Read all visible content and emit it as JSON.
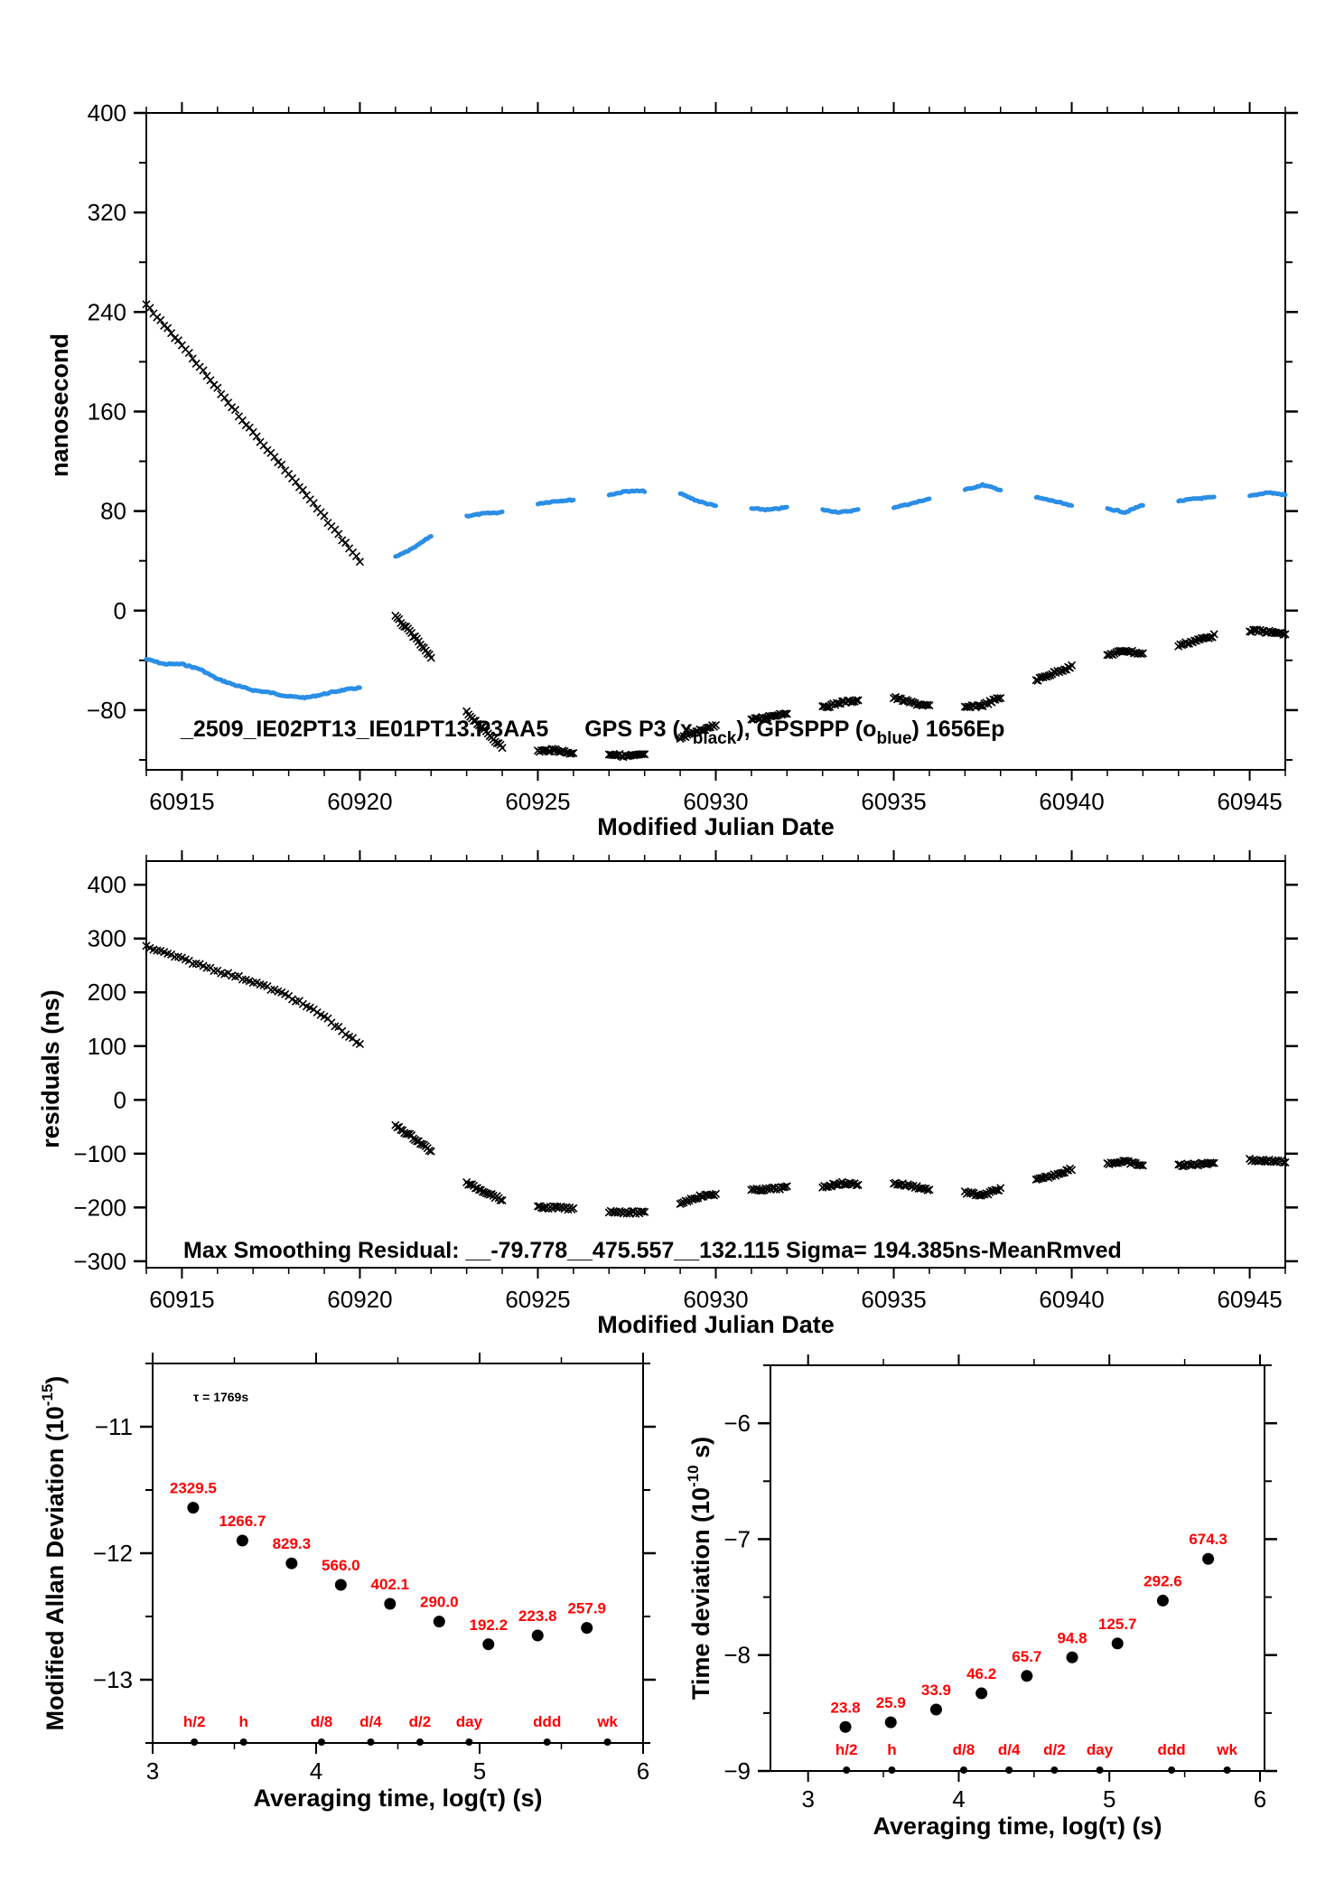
{
  "chart_data": [
    {
      "id": "time-series",
      "type": "scatter",
      "xlabel": "Modified Julian Date",
      "ylabel": "nanosecond",
      "xlim": [
        60914,
        60946
      ],
      "ylim": [
        -128,
        400
      ],
      "xticks": [
        60915,
        60920,
        60925,
        60930,
        60935,
        60940,
        60945
      ],
      "xtick_labels": [
        "60915",
        "60920",
        "60925",
        "60930",
        "60935",
        "60940",
        "60945"
      ],
      "yticks": [
        400,
        320,
        240,
        160,
        80,
        0,
        -80
      ],
      "ytick_labels": [
        "400",
        "320",
        "240",
        "160",
        "80",
        "0",
        "−80"
      ],
      "legend": {
        "prefix": "_2509_IE02PT13_IE01PT13.P3AA5",
        "series1": "GPS P3 (x",
        "series1_sub": "black",
        "series2": "),  GPSPPP (o",
        "series2_sub": "blue",
        "suffix": ")  1656Ep",
        "placement": "bottom-center"
      },
      "series": [
        {
          "name": "GPS P3",
          "marker": "x",
          "color": "#000000",
          "segments": [
            [
              [
                60914.0,
                246
              ],
              [
                60915.0,
                213
              ],
              [
                60916.0,
                178
              ],
              [
                60917.0,
                143
              ],
              [
                60918.0,
                110
              ],
              [
                60919.0,
                75
              ],
              [
                60920.0,
                40
              ]
            ],
            [
              [
                60921.0,
                -5
              ],
              [
                60921.5,
                -20
              ],
              [
                60922.0,
                -38
              ]
            ],
            [
              [
                60923.0,
                -82
              ],
              [
                60923.5,
                -96
              ],
              [
                60924.0,
                -110
              ]
            ],
            [
              [
                60925.0,
                -113
              ],
              [
                60925.5,
                -112
              ],
              [
                60926.0,
                -115
              ]
            ],
            [
              [
                60927.0,
                -115
              ],
              [
                60927.5,
                -117
              ],
              [
                60928.0,
                -116
              ]
            ],
            [
              [
                60929.0,
                -103
              ],
              [
                60929.5,
                -97
              ],
              [
                60930.0,
                -92
              ]
            ],
            [
              [
                60931.0,
                -88
              ],
              [
                60931.5,
                -85
              ],
              [
                60932.0,
                -82
              ]
            ],
            [
              [
                60933.0,
                -78
              ],
              [
                60933.5,
                -74
              ],
              [
                60934.0,
                -72
              ]
            ],
            [
              [
                60935.0,
                -70
              ],
              [
                60935.5,
                -74
              ],
              [
                60936.0,
                -77
              ]
            ],
            [
              [
                60937.0,
                -78
              ],
              [
                60937.5,
                -76
              ],
              [
                60938.0,
                -70
              ]
            ],
            [
              [
                60939.0,
                -56
              ],
              [
                60939.5,
                -50
              ],
              [
                60940.0,
                -45
              ]
            ],
            [
              [
                60941.0,
                -36
              ],
              [
                60941.5,
                -32
              ],
              [
                60942.0,
                -35
              ]
            ],
            [
              [
                60943.0,
                -28
              ],
              [
                60943.5,
                -24
              ],
              [
                60944.0,
                -20
              ]
            ],
            [
              [
                60945.0,
                -16
              ],
              [
                60945.5,
                -17
              ],
              [
                60946.0,
                -19
              ]
            ]
          ]
        },
        {
          "name": "GPSPPP",
          "marker": "o",
          "color": "#2b8ee6",
          "segments": [
            [
              [
                60914.0,
                -39
              ],
              [
                60914.5,
                -43
              ],
              [
                60915.0,
                -43
              ],
              [
                60915.5,
                -47
              ],
              [
                60916.0,
                -55
              ],
              [
                60916.5,
                -60
              ],
              [
                60917.0,
                -64
              ],
              [
                60917.5,
                -66
              ],
              [
                60918.0,
                -69
              ],
              [
                60918.5,
                -70
              ],
              [
                60919.0,
                -67
              ],
              [
                60919.5,
                -64
              ],
              [
                60920.0,
                -62
              ]
            ],
            [
              [
                60921.0,
                43
              ],
              [
                60921.5,
                50
              ],
              [
                60922.0,
                60
              ]
            ],
            [
              [
                60923.0,
                76
              ],
              [
                60923.5,
                78
              ],
              [
                60924.0,
                79
              ]
            ],
            [
              [
                60925.0,
                86
              ],
              [
                60925.5,
                88
              ],
              [
                60926.0,
                89
              ]
            ],
            [
              [
                60927.0,
                93
              ],
              [
                60927.5,
                96
              ],
              [
                60928.0,
                96
              ]
            ],
            [
              [
                60929.0,
                94
              ],
              [
                60929.5,
                88
              ],
              [
                60930.0,
                84
              ]
            ],
            [
              [
                60931.0,
                82
              ],
              [
                60931.5,
                81
              ],
              [
                60932.0,
                83
              ]
            ],
            [
              [
                60933.0,
                81
              ],
              [
                60933.5,
                79
              ],
              [
                60934.0,
                81
              ]
            ],
            [
              [
                60935.0,
                83
              ],
              [
                60935.5,
                86
              ],
              [
                60936.0,
                90
              ]
            ],
            [
              [
                60937.0,
                97
              ],
              [
                60937.5,
                101
              ],
              [
                60938.0,
                97
              ]
            ],
            [
              [
                60939.0,
                91
              ],
              [
                60939.5,
                88
              ],
              [
                60940.0,
                84
              ]
            ],
            [
              [
                60941.0,
                82
              ],
              [
                60941.5,
                79
              ],
              [
                60942.0,
                85
              ]
            ],
            [
              [
                60943.0,
                88
              ],
              [
                60943.5,
                90
              ],
              [
                60944.0,
                91
              ]
            ],
            [
              [
                60945.0,
                92
              ],
              [
                60945.5,
                95
              ],
              [
                60946.0,
                93
              ]
            ]
          ]
        }
      ]
    },
    {
      "id": "residuals",
      "type": "scatter",
      "xlabel": "Modified Julian Date",
      "ylabel": "residuals (ns)",
      "xlim": [
        60914,
        60946
      ],
      "ylim": [
        -312,
        444
      ],
      "xticks": [
        60915,
        60920,
        60925,
        60930,
        60935,
        60940,
        60945
      ],
      "xtick_labels": [
        "60915",
        "60920",
        "60925",
        "60930",
        "60935",
        "60940",
        "60945"
      ],
      "yticks": [
        400,
        300,
        200,
        100,
        0,
        -100,
        -200,
        -300
      ],
      "ytick_labels": [
        "400",
        "300",
        "200",
        "100",
        "0",
        "−100",
        "−200",
        "−300"
      ],
      "annotation": "Max Smoothing Residual: __-79.778__475.557__132.115  Sigma= 194.385ns-MeanRmved",
      "series": [
        {
          "name": "residuals",
          "marker": "x",
          "color": "#000000",
          "segments": [
            [
              [
                60914.0,
                285
              ],
              [
                60915.0,
                262
              ],
              [
                60916.0,
                240
              ],
              [
                60917.0,
                220
              ],
              [
                60918.0,
                193
              ],
              [
                60919.0,
                155
              ],
              [
                60920.0,
                102
              ]
            ],
            [
              [
                60921.0,
                -48
              ],
              [
                60921.5,
                -70
              ],
              [
                60922.0,
                -95
              ]
            ],
            [
              [
                60923.0,
                -155
              ],
              [
                60923.5,
                -170
              ],
              [
                60924.0,
                -186
              ]
            ],
            [
              [
                60925.0,
                -200
              ],
              [
                60925.5,
                -200
              ],
              [
                60926.0,
                -203
              ]
            ],
            [
              [
                60927.0,
                -207
              ],
              [
                60927.5,
                -209
              ],
              [
                60928.0,
                -210
              ]
            ],
            [
              [
                60929.0,
                -192
              ],
              [
                60929.5,
                -180
              ],
              [
                60930.0,
                -175
              ]
            ],
            [
              [
                60931.0,
                -168
              ],
              [
                60931.5,
                -166
              ],
              [
                60932.0,
                -163
              ]
            ],
            [
              [
                60933.0,
                -162
              ],
              [
                60933.5,
                -155
              ],
              [
                60934.0,
                -157
              ]
            ],
            [
              [
                60935.0,
                -155
              ],
              [
                60935.5,
                -160
              ],
              [
                60936.0,
                -167
              ]
            ],
            [
              [
                60937.0,
                -172
              ],
              [
                60937.5,
                -178
              ],
              [
                60938.0,
                -165
              ]
            ],
            [
              [
                60939.0,
                -150
              ],
              [
                60939.5,
                -140
              ],
              [
                60940.0,
                -128
              ]
            ],
            [
              [
                60941.0,
                -118
              ],
              [
                60941.5,
                -115
              ],
              [
                60942.0,
                -122
              ]
            ],
            [
              [
                60943.0,
                -122
              ],
              [
                60943.5,
                -120
              ],
              [
                60944.0,
                -116
              ]
            ],
            [
              [
                60945.0,
                -112
              ],
              [
                60945.5,
                -113
              ],
              [
                60946.0,
                -115
              ]
            ]
          ]
        }
      ]
    },
    {
      "id": "mdev",
      "type": "scatter",
      "xlabel": "Averaging time, log(τ) (s)",
      "ylabel": "Modified Allan Deviation (10",
      "ylabel_sup": "-15",
      "ylabel_end": ")",
      "xlim": [
        3,
        6
      ],
      "ylim": [
        -13.5,
        -10.5
      ],
      "xticks": [
        3,
        4,
        5,
        6
      ],
      "xtick_labels": [
        "3",
        "4",
        "5",
        "6"
      ],
      "yticks": [
        -11,
        -12,
        -13
      ],
      "ytick_labels": [
        "−11",
        "−12",
        "−13"
      ],
      "annotation": "τ = 1769s",
      "x": [
        3.248,
        3.549,
        3.85,
        4.151,
        4.452,
        4.753,
        5.054,
        5.355,
        5.656
      ],
      "y": [
        -11.64,
        -11.9,
        -12.08,
        -12.25,
        -12.4,
        -12.54,
        -12.72,
        -12.65,
        -12.59
      ],
      "point_labels": [
        "2329.5",
        "1266.7",
        "829.3",
        "566.0",
        "402.1",
        "290.0",
        "192.2",
        "223.8",
        "257.9"
      ],
      "reference_marks": {
        "labels": [
          "h/2",
          "h",
          "d/8",
          "d/4",
          "d/2",
          "day",
          "ddd",
          "wk"
        ],
        "x": [
          3.255,
          3.556,
          4.033,
          4.334,
          4.635,
          4.936,
          5.413,
          5.782
        ]
      }
    },
    {
      "id": "tdev",
      "type": "scatter",
      "xlabel": "Averaging time, log(τ) (s)",
      "ylabel": "Time deviation (10",
      "ylabel_sup": "-10",
      "ylabel_end": " s)",
      "xlim": [
        2.75,
        6.03
      ],
      "ylim": [
        -9,
        -5.5
      ],
      "xticks": [
        3,
        4,
        5,
        6
      ],
      "xtick_labels": [
        "3",
        "4",
        "5",
        "6"
      ],
      "yticks": [
        -6,
        -7,
        -8,
        -9
      ],
      "ytick_labels": [
        "−6",
        "−7",
        "−8",
        "−9"
      ],
      "x": [
        3.248,
        3.549,
        3.85,
        4.151,
        4.452,
        4.753,
        5.054,
        5.355,
        5.656
      ],
      "y": [
        -8.62,
        -8.58,
        -8.47,
        -8.33,
        -8.18,
        -8.02,
        -7.9,
        -7.53,
        -7.17
      ],
      "point_labels": [
        "23.8",
        "25.9",
        "33.9",
        "46.2",
        "65.7",
        "94.8",
        "125.7",
        "292.6",
        "674.3"
      ],
      "reference_marks": {
        "labels": [
          "h/2",
          "h",
          "d/8",
          "d/4",
          "d/2",
          "day",
          "ddd",
          "wk"
        ],
        "x": [
          3.255,
          3.556,
          4.033,
          4.334,
          4.635,
          4.936,
          5.413,
          5.782
        ]
      }
    }
  ]
}
